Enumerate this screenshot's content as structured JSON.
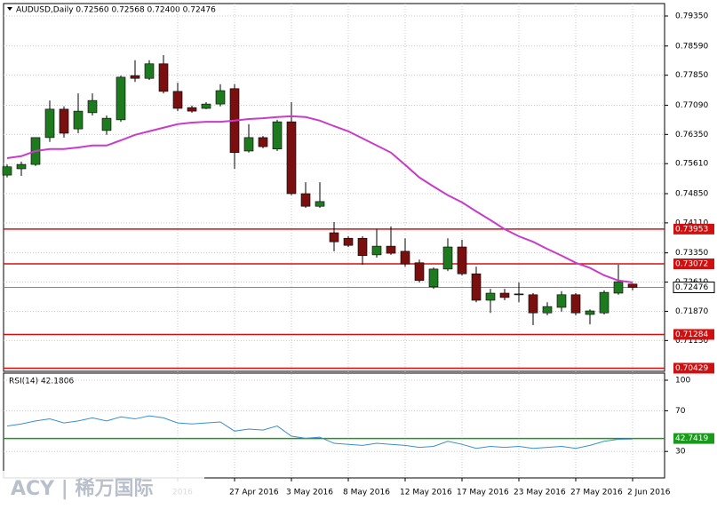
{
  "chart_data": {
    "type": "candlestick",
    "title": "AUDUSD,Daily  0.72560 0.72568 0.72400 0.72476",
    "logo": "ACY | 稀万国际",
    "categories": [
      null,
      null,
      null,
      null,
      null,
      null,
      null,
      null,
      null,
      null,
      null,
      null,
      "2016",
      null,
      null,
      null,
      "27 Apr 2016",
      null,
      null,
      null,
      "3 May 2016",
      null,
      null,
      null,
      "8 May 2016",
      null,
      null,
      null,
      "12 May 2016",
      null,
      null,
      null,
      "17 May 2016",
      null,
      null,
      null,
      "23 May 2016",
      null,
      null,
      null,
      "27 May 2016",
      null,
      null,
      null,
      "2 Jun 2016"
    ],
    "open": [
      0.7532,
      0.7548,
      0.7559,
      0.7627,
      0.7699,
      0.7649,
      0.769,
      0.7645,
      0.7672,
      0.7784,
      0.7777,
      0.7814,
      0.7744,
      0.7703,
      0.7701,
      0.7712,
      0.7751,
      0.7593,
      0.7627,
      0.7598,
      0.7667,
      0.7485,
      0.7453,
      0.7386,
      0.7372,
      0.7372,
      0.733,
      0.7352,
      0.7339,
      0.731,
      0.7249,
      0.7294,
      0.735,
      0.7282,
      0.7215,
      0.7233,
      0.7231,
      0.7229,
      0.7183,
      0.7197,
      0.7229,
      0.7179,
      0.7183,
      0.7233,
      0.7256
    ],
    "high": [
      0.7559,
      0.7566,
      0.7627,
      0.7721,
      0.7706,
      0.7739,
      0.7739,
      0.7683,
      0.7784,
      0.7823,
      0.7823,
      0.7836,
      0.7766,
      0.7708,
      0.7717,
      0.7762,
      0.7762,
      0.7661,
      0.7631,
      0.7672,
      0.7717,
      0.7514,
      0.7514,
      0.7413,
      0.7377,
      0.7377,
      0.7395,
      0.7402,
      0.7372,
      0.7318,
      0.7298,
      0.7372,
      0.7368,
      0.73,
      0.7244,
      0.7244,
      0.726,
      0.7233,
      0.721,
      0.7238,
      0.7233,
      0.7192,
      0.724,
      0.7305,
      0.72568
    ],
    "low": [
      0.7526,
      0.753,
      0.7555,
      0.7616,
      0.7627,
      0.7638,
      0.7683,
      0.7634,
      0.7667,
      0.7768,
      0.7773,
      0.7739,
      0.7694,
      0.769,
      0.7699,
      0.7706,
      0.7548,
      0.7589,
      0.76,
      0.7593,
      0.7481,
      0.7449,
      0.7449,
      0.7339,
      0.735,
      0.7305,
      0.7323,
      0.733,
      0.73,
      0.726,
      0.7244,
      0.7289,
      0.7278,
      0.721,
      0.7183,
      0.7215,
      0.721,
      0.7152,
      0.7177,
      0.7186,
      0.7177,
      0.7154,
      0.7179,
      0.7229,
      0.724
    ],
    "close": [
      0.7553,
      0.7559,
      0.7627,
      0.7699,
      0.7638,
      0.7694,
      0.7721,
      0.7676,
      0.778,
      0.7777,
      0.7814,
      0.7744,
      0.7701,
      0.7694,
      0.7712,
      0.7746,
      0.7589,
      0.7627,
      0.7604,
      0.7667,
      0.7485,
      0.7453,
      0.7465,
      0.7363,
      0.7354,
      0.7328,
      0.7352,
      0.7334,
      0.7307,
      0.7265,
      0.7294,
      0.735,
      0.7282,
      0.7215,
      0.7233,
      0.7222,
      0.7229,
      0.7183,
      0.7199,
      0.7229,
      0.7183,
      0.7188,
      0.7235,
      0.7262,
      0.72476
    ],
    "up_color": "#1e7a1e",
    "down_color": "#7a0f0f",
    "ma": {
      "color": "#c83cc8",
      "values": [
        0.7575,
        0.758,
        0.7593,
        0.7598,
        0.7598,
        0.7602,
        0.7607,
        0.7607,
        0.762,
        0.7634,
        0.7643,
        0.7652,
        0.7661,
        0.7665,
        0.7667,
        0.7667,
        0.767,
        0.7674,
        0.7676,
        0.7679,
        0.7681,
        0.7679,
        0.767,
        0.7656,
        0.7643,
        0.7625,
        0.7607,
        0.7589,
        0.7558,
        0.7526,
        0.7503,
        0.7481,
        0.7463,
        0.744,
        0.7418,
        0.7395,
        0.7377,
        0.7363,
        0.7345,
        0.7328,
        0.731,
        0.7297,
        0.7278,
        0.7265,
        0.726
      ]
    },
    "ylim": [
      0.7035,
      0.79665
    ],
    "yticks": [
      {
        "value": 0.7935,
        "label": "0.79350"
      },
      {
        "value": 0.7859,
        "label": "0.78590"
      },
      {
        "value": 0.7785,
        "label": "0.77850"
      },
      {
        "value": 0.7709,
        "label": "0.77090"
      },
      {
        "value": 0.7635,
        "label": "0.76350"
      },
      {
        "value": 0.7561,
        "label": "0.75610"
      },
      {
        "value": 0.7485,
        "label": "0.74850"
      },
      {
        "value": 0.7411,
        "label": "0.74110"
      },
      {
        "value": 0.7335,
        "label": "0.73350"
      },
      {
        "value": 0.7261,
        "label": "0.72610"
      },
      {
        "value": 0.7187,
        "label": "0.71870"
      },
      {
        "value": 0.7113,
        "label": "0.71130"
      }
    ],
    "levels": {
      "color": "#d01010",
      "values": [
        0.73953,
        0.73072,
        0.71284,
        0.70429
      ]
    },
    "last_price": 0.72476,
    "grid": true,
    "rsi": {
      "title": "RSI(14) 42.1806",
      "color": "#3a8fd0",
      "values": [
        55,
        57,
        60,
        62,
        58,
        60,
        63,
        60,
        64,
        62,
        65,
        63,
        58,
        57,
        58,
        59,
        50,
        52,
        51,
        55,
        45,
        43,
        44,
        38,
        37,
        36,
        38,
        37,
        36,
        34,
        35,
        40,
        37,
        33,
        35,
        34,
        35,
        33,
        34,
        35,
        33,
        36,
        40,
        42,
        42.1806
      ],
      "level": 42.7419,
      "level_color": "#1a9a1a",
      "ylim": [
        4,
        107
      ],
      "yticks": [
        100,
        70,
        30
      ]
    }
  }
}
